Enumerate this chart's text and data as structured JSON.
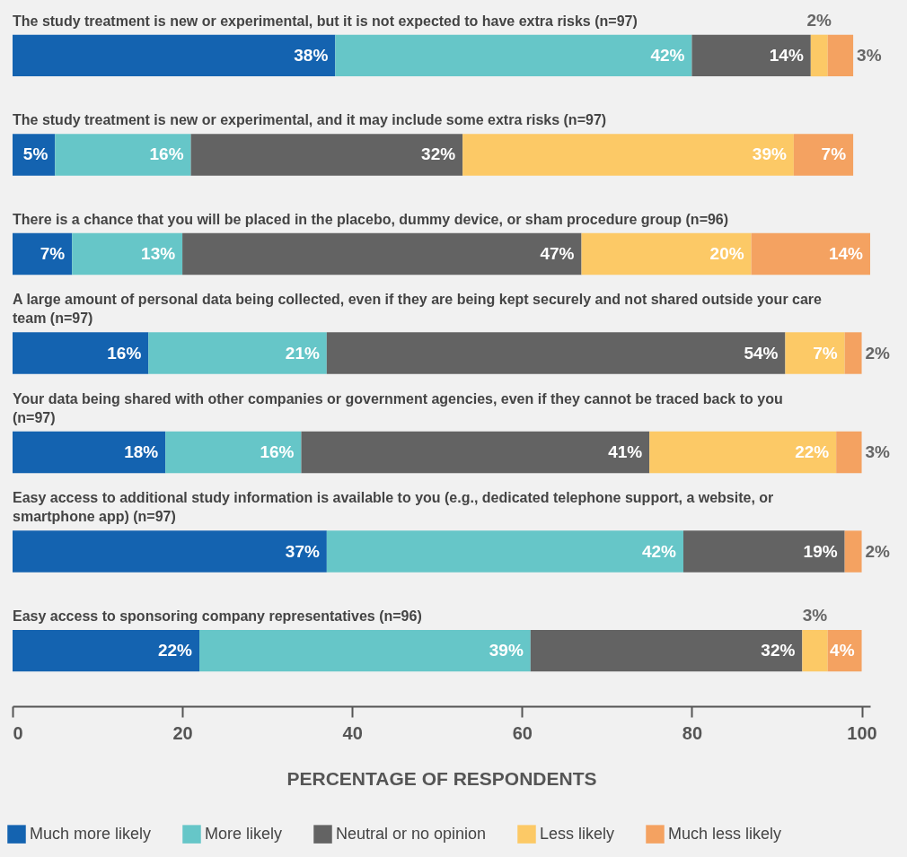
{
  "chart_data": {
    "type": "bar",
    "orientation": "horizontal",
    "stacked": true,
    "legend": "bottom",
    "grid": false,
    "xlabel": "PERCENTAGE OF RESPONDENTS",
    "xlim": [
      0,
      101
    ],
    "xticks": [
      0,
      20,
      40,
      60,
      80,
      100
    ],
    "categories": [
      "The study treatment is new or experimental, but it is not expected to have extra risks (n=97)",
      "The study treatment is new or experimental, and it may include some extra risks (n=97)",
      "There is a chance that you will be placed in the placebo, dummy device, or sham procedure group (n=96)",
      "A large amount of personal data being collected, even if they are being kept securely and not shared outside your care team (n=97)",
      "Your data being shared with other companies or government agencies, even if they cannot be traced back to you (n=97)",
      "Easy access to additional study information is available to you (e.g., dedicated telephone support, a website, or smartphone app) (n=97)",
      "Easy access to sponsoring company representatives (n=96)"
    ],
    "series": [
      {
        "name": "Much more likely",
        "color": "#1463b0",
        "values": [
          38,
          5,
          7,
          16,
          18,
          37,
          22
        ],
        "value_labels": [
          "38%",
          "5%",
          "7%",
          "16%",
          "18%",
          "37%",
          "22%"
        ]
      },
      {
        "name": "More likely",
        "color": "#66c6c8",
        "values": [
          42,
          16,
          13,
          21,
          16,
          42,
          39
        ],
        "value_labels": [
          "42%",
          "16%",
          "13%",
          "21%",
          "16%",
          "42%",
          "39%"
        ]
      },
      {
        "name": "Neutral or no opinion",
        "color": "#636363",
        "values": [
          14,
          32,
          47,
          54,
          41,
          19,
          32
        ],
        "value_labels": [
          "14%",
          "32%",
          "47%",
          "54%",
          "41%",
          "19%",
          "32%"
        ]
      },
      {
        "name": "Less likely",
        "color": "#fcc966",
        "values": [
          2,
          39,
          20,
          7,
          22,
          null,
          3
        ],
        "value_labels": [
          "2%",
          "39%",
          "20%",
          "7%",
          "22%",
          null,
          "3%"
        ]
      },
      {
        "name": "Much less likely",
        "color": "#f4a261",
        "values": [
          3,
          7,
          14,
          2,
          3,
          2,
          4
        ],
        "value_labels": [
          "3%",
          "7%",
          "14%",
          "2%",
          "3%",
          "2%",
          "4%"
        ]
      }
    ]
  }
}
